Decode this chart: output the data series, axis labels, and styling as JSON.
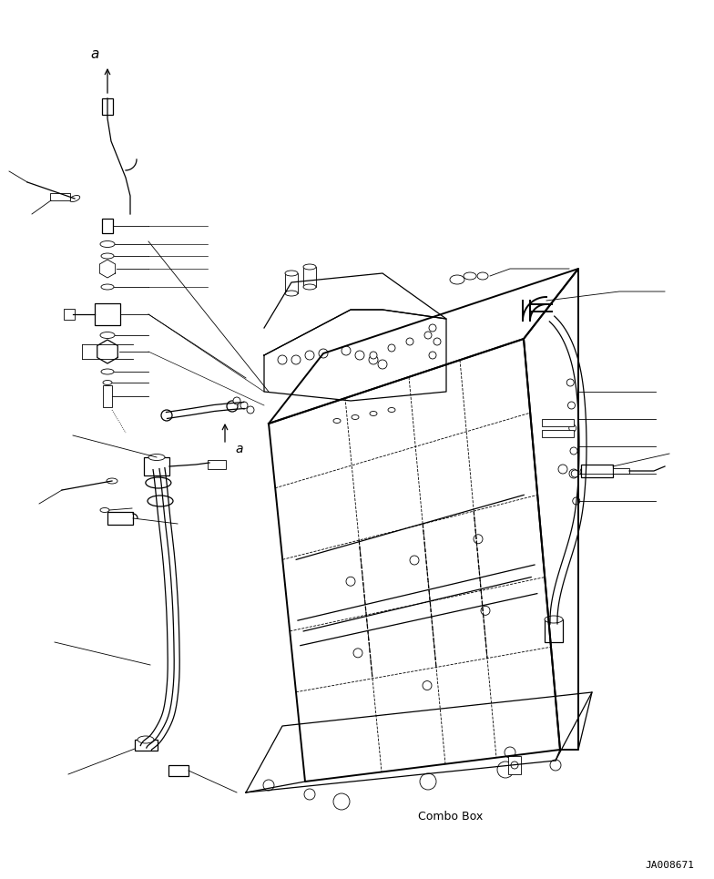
{
  "background_color": "#ffffff",
  "line_color": "#000000",
  "text_color": "#000000",
  "combo_box_label": "Combo Box",
  "ref_number": "JA008671",
  "label_a": "a",
  "fig_width": 7.84,
  "fig_height": 9.65,
  "dpi": 100
}
